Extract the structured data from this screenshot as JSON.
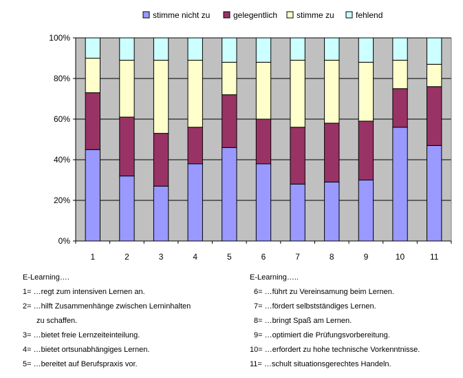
{
  "chart_data": {
    "type": "bar",
    "stacked": true,
    "percent": true,
    "categories": [
      "1",
      "2",
      "3",
      "4",
      "5",
      "6",
      "7",
      "8",
      "9",
      "10",
      "11"
    ],
    "series": [
      {
        "name": "stimme nicht zu",
        "color": "#9999ff",
        "values": [
          45,
          32,
          27,
          38,
          46,
          38,
          28,
          29,
          30,
          56,
          47
        ]
      },
      {
        "name": "gelegentlich",
        "color": "#993366",
        "values": [
          28,
          29,
          26,
          18,
          26,
          22,
          28,
          29,
          29,
          19,
          29
        ]
      },
      {
        "name": "stimme zu",
        "color": "#ffffcc",
        "values": [
          17,
          28,
          36,
          33,
          16,
          28,
          33,
          31,
          29,
          14,
          11
        ]
      },
      {
        "name": "fehlend",
        "color": "#ccffff",
        "values": [
          10,
          11,
          11,
          11,
          12,
          12,
          11,
          11,
          12,
          11,
          13
        ]
      }
    ],
    "y_ticks": [
      "0%",
      "20%",
      "40%",
      "60%",
      "80%",
      "100%"
    ],
    "ylim": [
      0,
      100
    ],
    "grid": true,
    "legend": "top",
    "plot_background": "#c0c0c0"
  },
  "notes": {
    "left": {
      "heading": "E-Learning….",
      "lines": [
        "1= …regt zum intensiven Lernen an.",
        "2= …hilft Zusammenhänge zwischen Lerninhalten",
        "zu schaffen.",
        "3= …bietet freie Lernzeiteinteilung.",
        "4= …bietet ortsunabhängiges Lernen.",
        "5= …bereitet auf Berufspraxis vor."
      ]
    },
    "right": {
      "heading": "E-Learning…..",
      "lines": [
        "6= …führt zu Vereinsamung beim Lernen.",
        "7= …fördert selbstständiges Lernen.",
        "8=  …bringt Spaß am Lernen.",
        "9= …optimiert die Prüfungsvorbereitung.",
        "10= …erfordert zu hohe technische Vorkenntnisse.",
        "11= …schult situationsgerechtes Handeln."
      ]
    }
  }
}
